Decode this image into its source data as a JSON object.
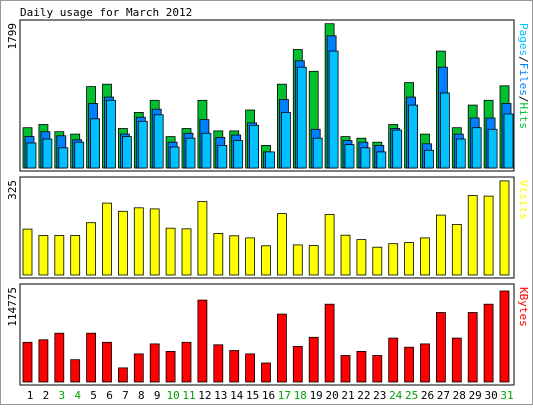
{
  "title": "Daily usage for March 2012",
  "colors": {
    "hits": "#00C030",
    "files": "#0080FF",
    "pages": "#00C0FF",
    "visits": "#FFFF00",
    "kbytes": "#FF0000",
    "weekday_label": "#000000",
    "weekend_label": "#00A000"
  },
  "days": [
    "1",
    "2",
    "3",
    "4",
    "5",
    "6",
    "7",
    "8",
    "9",
    "10",
    "11",
    "12",
    "13",
    "14",
    "15",
    "16",
    "17",
    "18",
    "19",
    "20",
    "21",
    "22",
    "23",
    "24",
    "25",
    "26",
    "27",
    "28",
    "29",
    "30",
    "31"
  ],
  "weekend_days": [
    "3",
    "4",
    "10",
    "11",
    "17",
    "18",
    "24",
    "25",
    "31"
  ],
  "chart_data": [
    {
      "type": "bar",
      "panel": "hits-files-pages",
      "ylabel": "Pages/Files/Hits",
      "ylabel_parts": [
        "Pages",
        "/",
        "Files",
        "/",
        "Hits"
      ],
      "ymax_label": "1799",
      "ylim": [
        0,
        1799
      ],
      "categories": [
        "1",
        "2",
        "3",
        "4",
        "5",
        "6",
        "7",
        "8",
        "9",
        "10",
        "11",
        "12",
        "13",
        "14",
        "15",
        "16",
        "17",
        "18",
        "19",
        "20",
        "21",
        "22",
        "23",
        "24",
        "25",
        "26",
        "27",
        "28",
        "29",
        "30",
        "31"
      ],
      "series": [
        {
          "name": "Hits",
          "values": [
            500,
            540,
            450,
            420,
            1010,
            1040,
            490,
            690,
            840,
            390,
            490,
            840,
            460,
            460,
            720,
            280,
            1040,
            1470,
            1200,
            1790,
            390,
            370,
            320,
            540,
            1060,
            420,
            1450,
            500,
            780,
            840,
            1020
          ]
        },
        {
          "name": "Files",
          "values": [
            390,
            450,
            400,
            350,
            800,
            880,
            420,
            630,
            730,
            320,
            430,
            600,
            380,
            410,
            560,
            200,
            850,
            1330,
            480,
            1640,
            340,
            320,
            280,
            490,
            880,
            300,
            1250,
            420,
            620,
            620,
            800
          ]
        },
        {
          "name": "Pages",
          "values": [
            310,
            360,
            250,
            320,
            610,
            840,
            390,
            580,
            660,
            260,
            370,
            430,
            280,
            340,
            530,
            200,
            690,
            1250,
            370,
            1450,
            290,
            250,
            200,
            470,
            780,
            220,
            930,
            360,
            500,
            480,
            670
          ]
        }
      ]
    },
    {
      "type": "bar",
      "panel": "visits",
      "ylabel": "Visits",
      "ymax_label": "325",
      "ylim": [
        0,
        325
      ],
      "categories": [
        "1",
        "2",
        "3",
        "4",
        "5",
        "6",
        "7",
        "8",
        "9",
        "10",
        "11",
        "12",
        "13",
        "14",
        "15",
        "16",
        "17",
        "18",
        "19",
        "20",
        "21",
        "22",
        "23",
        "24",
        "25",
        "26",
        "27",
        "28",
        "29",
        "30",
        "31"
      ],
      "series": [
        {
          "name": "Visits",
          "values": [
            157,
            135,
            135,
            135,
            179,
            246,
            218,
            230,
            226,
            160,
            158,
            251,
            142,
            134,
            127,
            100,
            210,
            103,
            101,
            207,
            136,
            121,
            95,
            107,
            111,
            127,
            205,
            173,
            272,
            270,
            322
          ]
        }
      ]
    },
    {
      "type": "bar",
      "panel": "kbytes",
      "ylabel": "KBytes",
      "ymax_label": "114775",
      "ylim": [
        0,
        114775
      ],
      "categories": [
        "1",
        "2",
        "3",
        "4",
        "5",
        "6",
        "7",
        "8",
        "9",
        "10",
        "11",
        "12",
        "13",
        "14",
        "15",
        "16",
        "17",
        "18",
        "19",
        "20",
        "21",
        "22",
        "23",
        "24",
        "25",
        "26",
        "27",
        "28",
        "29",
        "30",
        "31"
      ],
      "series": [
        {
          "name": "KBytes",
          "values": [
            48000,
            51000,
            59000,
            27000,
            59000,
            48000,
            17000,
            34000,
            46000,
            37000,
            48000,
            99000,
            45000,
            38000,
            34000,
            23000,
            82000,
            43000,
            54000,
            94000,
            32000,
            37000,
            32000,
            53000,
            42000,
            46000,
            84000,
            53000,
            84000,
            94000,
            110000
          ]
        }
      ]
    }
  ]
}
